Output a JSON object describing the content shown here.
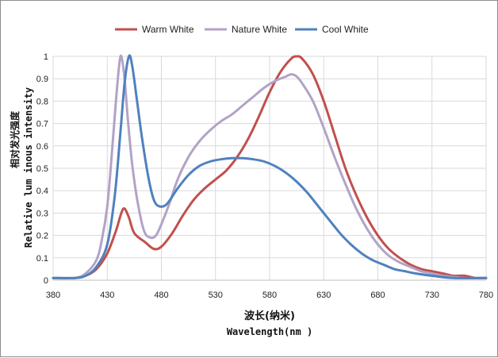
{
  "chart_data": {
    "type": "line",
    "title": "",
    "xlabel_cn": "波长(纳米)",
    "xlabel_en": "Wavelength(nm )",
    "ylabel_cn": "相对发光强度",
    "ylabel_en": "Relative lum inous intensity",
    "xlim": [
      380,
      780
    ],
    "ylim": [
      0,
      1
    ],
    "x_ticks": [
      380,
      430,
      480,
      530,
      580,
      630,
      680,
      730,
      780
    ],
    "y_ticks": [
      0,
      0.1,
      0.2,
      0.3,
      0.4,
      0.5,
      0.6,
      0.7,
      0.8,
      0.9,
      1
    ],
    "y_tick_labels": [
      "0",
      "0.1",
      "0.2",
      "0.3",
      "0.4",
      "0.5",
      "0.6",
      "0.7",
      "0.8",
      "0.9",
      "1"
    ],
    "grid": true,
    "legend_position": "top",
    "series": [
      {
        "name": "Warm White",
        "color": "#c0504d",
        "points": [
          [
            380,
            0.01
          ],
          [
            400,
            0.01
          ],
          [
            410,
            0.02
          ],
          [
            420,
            0.05
          ],
          [
            430,
            0.12
          ],
          [
            438,
            0.22
          ],
          [
            443,
            0.3
          ],
          [
            446,
            0.32
          ],
          [
            450,
            0.28
          ],
          [
            455,
            0.21
          ],
          [
            465,
            0.17
          ],
          [
            473,
            0.14
          ],
          [
            480,
            0.15
          ],
          [
            490,
            0.21
          ],
          [
            500,
            0.29
          ],
          [
            510,
            0.36
          ],
          [
            520,
            0.41
          ],
          [
            530,
            0.45
          ],
          [
            540,
            0.49
          ],
          [
            550,
            0.55
          ],
          [
            560,
            0.63
          ],
          [
            570,
            0.73
          ],
          [
            580,
            0.84
          ],
          [
            590,
            0.93
          ],
          [
            600,
            0.99
          ],
          [
            605,
            1.0
          ],
          [
            610,
            0.99
          ],
          [
            620,
            0.92
          ],
          [
            630,
            0.8
          ],
          [
            640,
            0.65
          ],
          [
            650,
            0.5
          ],
          [
            660,
            0.38
          ],
          [
            670,
            0.28
          ],
          [
            680,
            0.2
          ],
          [
            690,
            0.14
          ],
          [
            700,
            0.1
          ],
          [
            710,
            0.07
          ],
          [
            720,
            0.05
          ],
          [
            730,
            0.04
          ],
          [
            740,
            0.03
          ],
          [
            750,
            0.02
          ],
          [
            760,
            0.02
          ],
          [
            770,
            0.01
          ],
          [
            780,
            0.01
          ]
        ]
      },
      {
        "name": "Nature White",
        "color": "#b3a2c7",
        "points": [
          [
            380,
            0.01
          ],
          [
            400,
            0.01
          ],
          [
            410,
            0.03
          ],
          [
            420,
            0.09
          ],
          [
            425,
            0.18
          ],
          [
            430,
            0.33
          ],
          [
            434,
            0.55
          ],
          [
            438,
            0.8
          ],
          [
            441,
            0.96
          ],
          [
            443,
            1.0
          ],
          [
            446,
            0.9
          ],
          [
            449,
            0.72
          ],
          [
            453,
            0.52
          ],
          [
            458,
            0.35
          ],
          [
            464,
            0.22
          ],
          [
            470,
            0.19
          ],
          [
            475,
            0.2
          ],
          [
            480,
            0.25
          ],
          [
            488,
            0.35
          ],
          [
            495,
            0.45
          ],
          [
            505,
            0.55
          ],
          [
            515,
            0.62
          ],
          [
            525,
            0.67
          ],
          [
            535,
            0.71
          ],
          [
            545,
            0.74
          ],
          [
            555,
            0.78
          ],
          [
            565,
            0.82
          ],
          [
            575,
            0.86
          ],
          [
            585,
            0.89
          ],
          [
            595,
            0.91
          ],
          [
            600,
            0.92
          ],
          [
            605,
            0.91
          ],
          [
            610,
            0.88
          ],
          [
            620,
            0.8
          ],
          [
            630,
            0.68
          ],
          [
            640,
            0.55
          ],
          [
            650,
            0.43
          ],
          [
            660,
            0.32
          ],
          [
            670,
            0.23
          ],
          [
            680,
            0.16
          ],
          [
            690,
            0.11
          ],
          [
            700,
            0.08
          ],
          [
            710,
            0.06
          ],
          [
            720,
            0.04
          ],
          [
            730,
            0.03
          ],
          [
            740,
            0.02
          ],
          [
            760,
            0.01
          ],
          [
            780,
            0.01
          ]
        ]
      },
      {
        "name": "Cool White",
        "color": "#4f81bd",
        "points": [
          [
            380,
            0.01
          ],
          [
            400,
            0.01
          ],
          [
            410,
            0.02
          ],
          [
            420,
            0.06
          ],
          [
            430,
            0.16
          ],
          [
            437,
            0.38
          ],
          [
            442,
            0.65
          ],
          [
            446,
            0.88
          ],
          [
            450,
            1.0
          ],
          [
            453,
            0.96
          ],
          [
            457,
            0.82
          ],
          [
            462,
            0.64
          ],
          [
            468,
            0.46
          ],
          [
            473,
            0.36
          ],
          [
            478,
            0.33
          ],
          [
            485,
            0.34
          ],
          [
            495,
            0.41
          ],
          [
            505,
            0.47
          ],
          [
            515,
            0.51
          ],
          [
            525,
            0.53
          ],
          [
            535,
            0.54
          ],
          [
            545,
            0.545
          ],
          [
            555,
            0.545
          ],
          [
            565,
            0.54
          ],
          [
            575,
            0.53
          ],
          [
            585,
            0.51
          ],
          [
            595,
            0.48
          ],
          [
            605,
            0.44
          ],
          [
            615,
            0.39
          ],
          [
            625,
            0.33
          ],
          [
            635,
            0.27
          ],
          [
            645,
            0.21
          ],
          [
            655,
            0.16
          ],
          [
            665,
            0.12
          ],
          [
            675,
            0.09
          ],
          [
            685,
            0.07
          ],
          [
            695,
            0.05
          ],
          [
            705,
            0.04
          ],
          [
            715,
            0.03
          ],
          [
            730,
            0.02
          ],
          [
            750,
            0.01
          ],
          [
            780,
            0.01
          ]
        ]
      }
    ]
  }
}
